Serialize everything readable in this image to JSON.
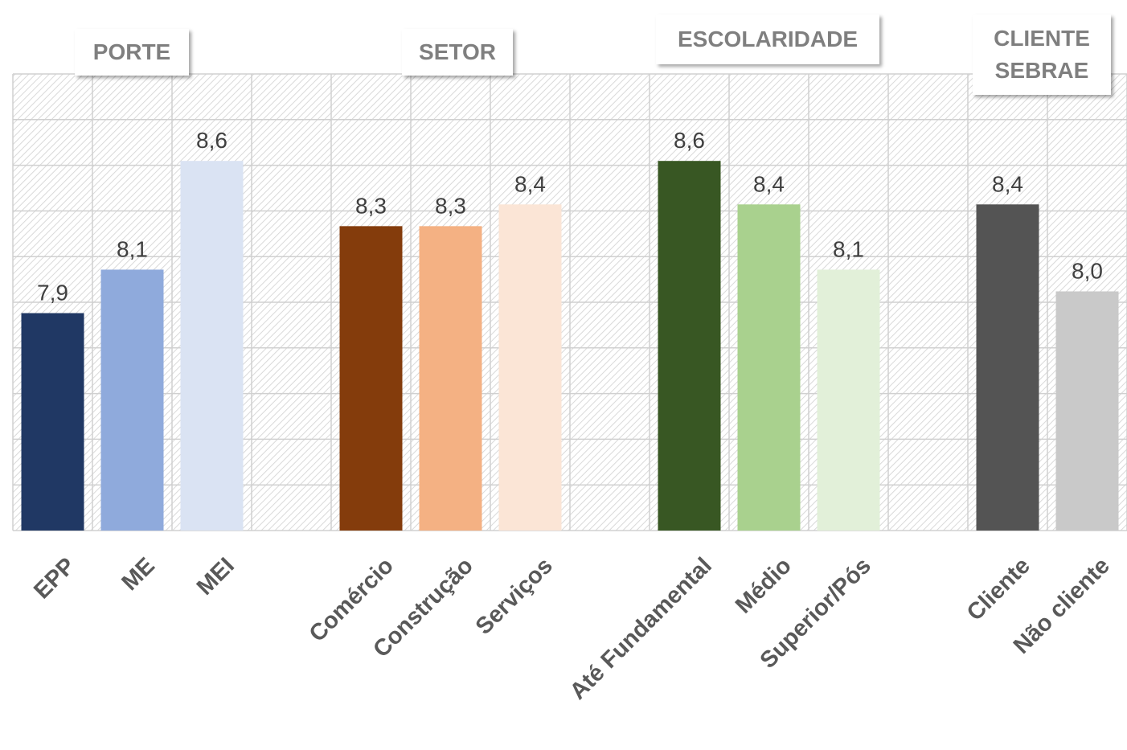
{
  "chart_data": {
    "type": "bar",
    "groups": [
      "PORTE",
      "SETOR",
      "ESCOLARIDADE",
      "CLIENTE SEBRAE"
    ],
    "categories": [
      "EPP",
      "ME",
      "MEI",
      null,
      "Comércio",
      "Construção",
      "Serviços",
      null,
      "Até Fundamental",
      "Médio",
      "Superior/Pós",
      null,
      "Cliente",
      "Não cliente"
    ],
    "values": [
      7.9,
      8.1,
      8.6,
      null,
      8.3,
      8.3,
      8.4,
      null,
      8.6,
      8.4,
      8.1,
      null,
      8.4,
      8.0
    ],
    "value_labels": [
      "7,9",
      "8,1",
      "8,6",
      null,
      "8,3",
      "8,3",
      "8,4",
      null,
      "8,6",
      "8,4",
      "8,1",
      null,
      "8,4",
      "8,0"
    ],
    "colors": [
      "#203864",
      "#8faadc",
      "#dae3f3",
      null,
      "#843c0c",
      "#f4b183",
      "#fbe5d6",
      null,
      "#385723",
      "#a9d18e",
      "#e2f0d9",
      null,
      "#545454",
      "#c9c9c9"
    ],
    "ylim": [
      6.9,
      9.0
    ]
  }
}
